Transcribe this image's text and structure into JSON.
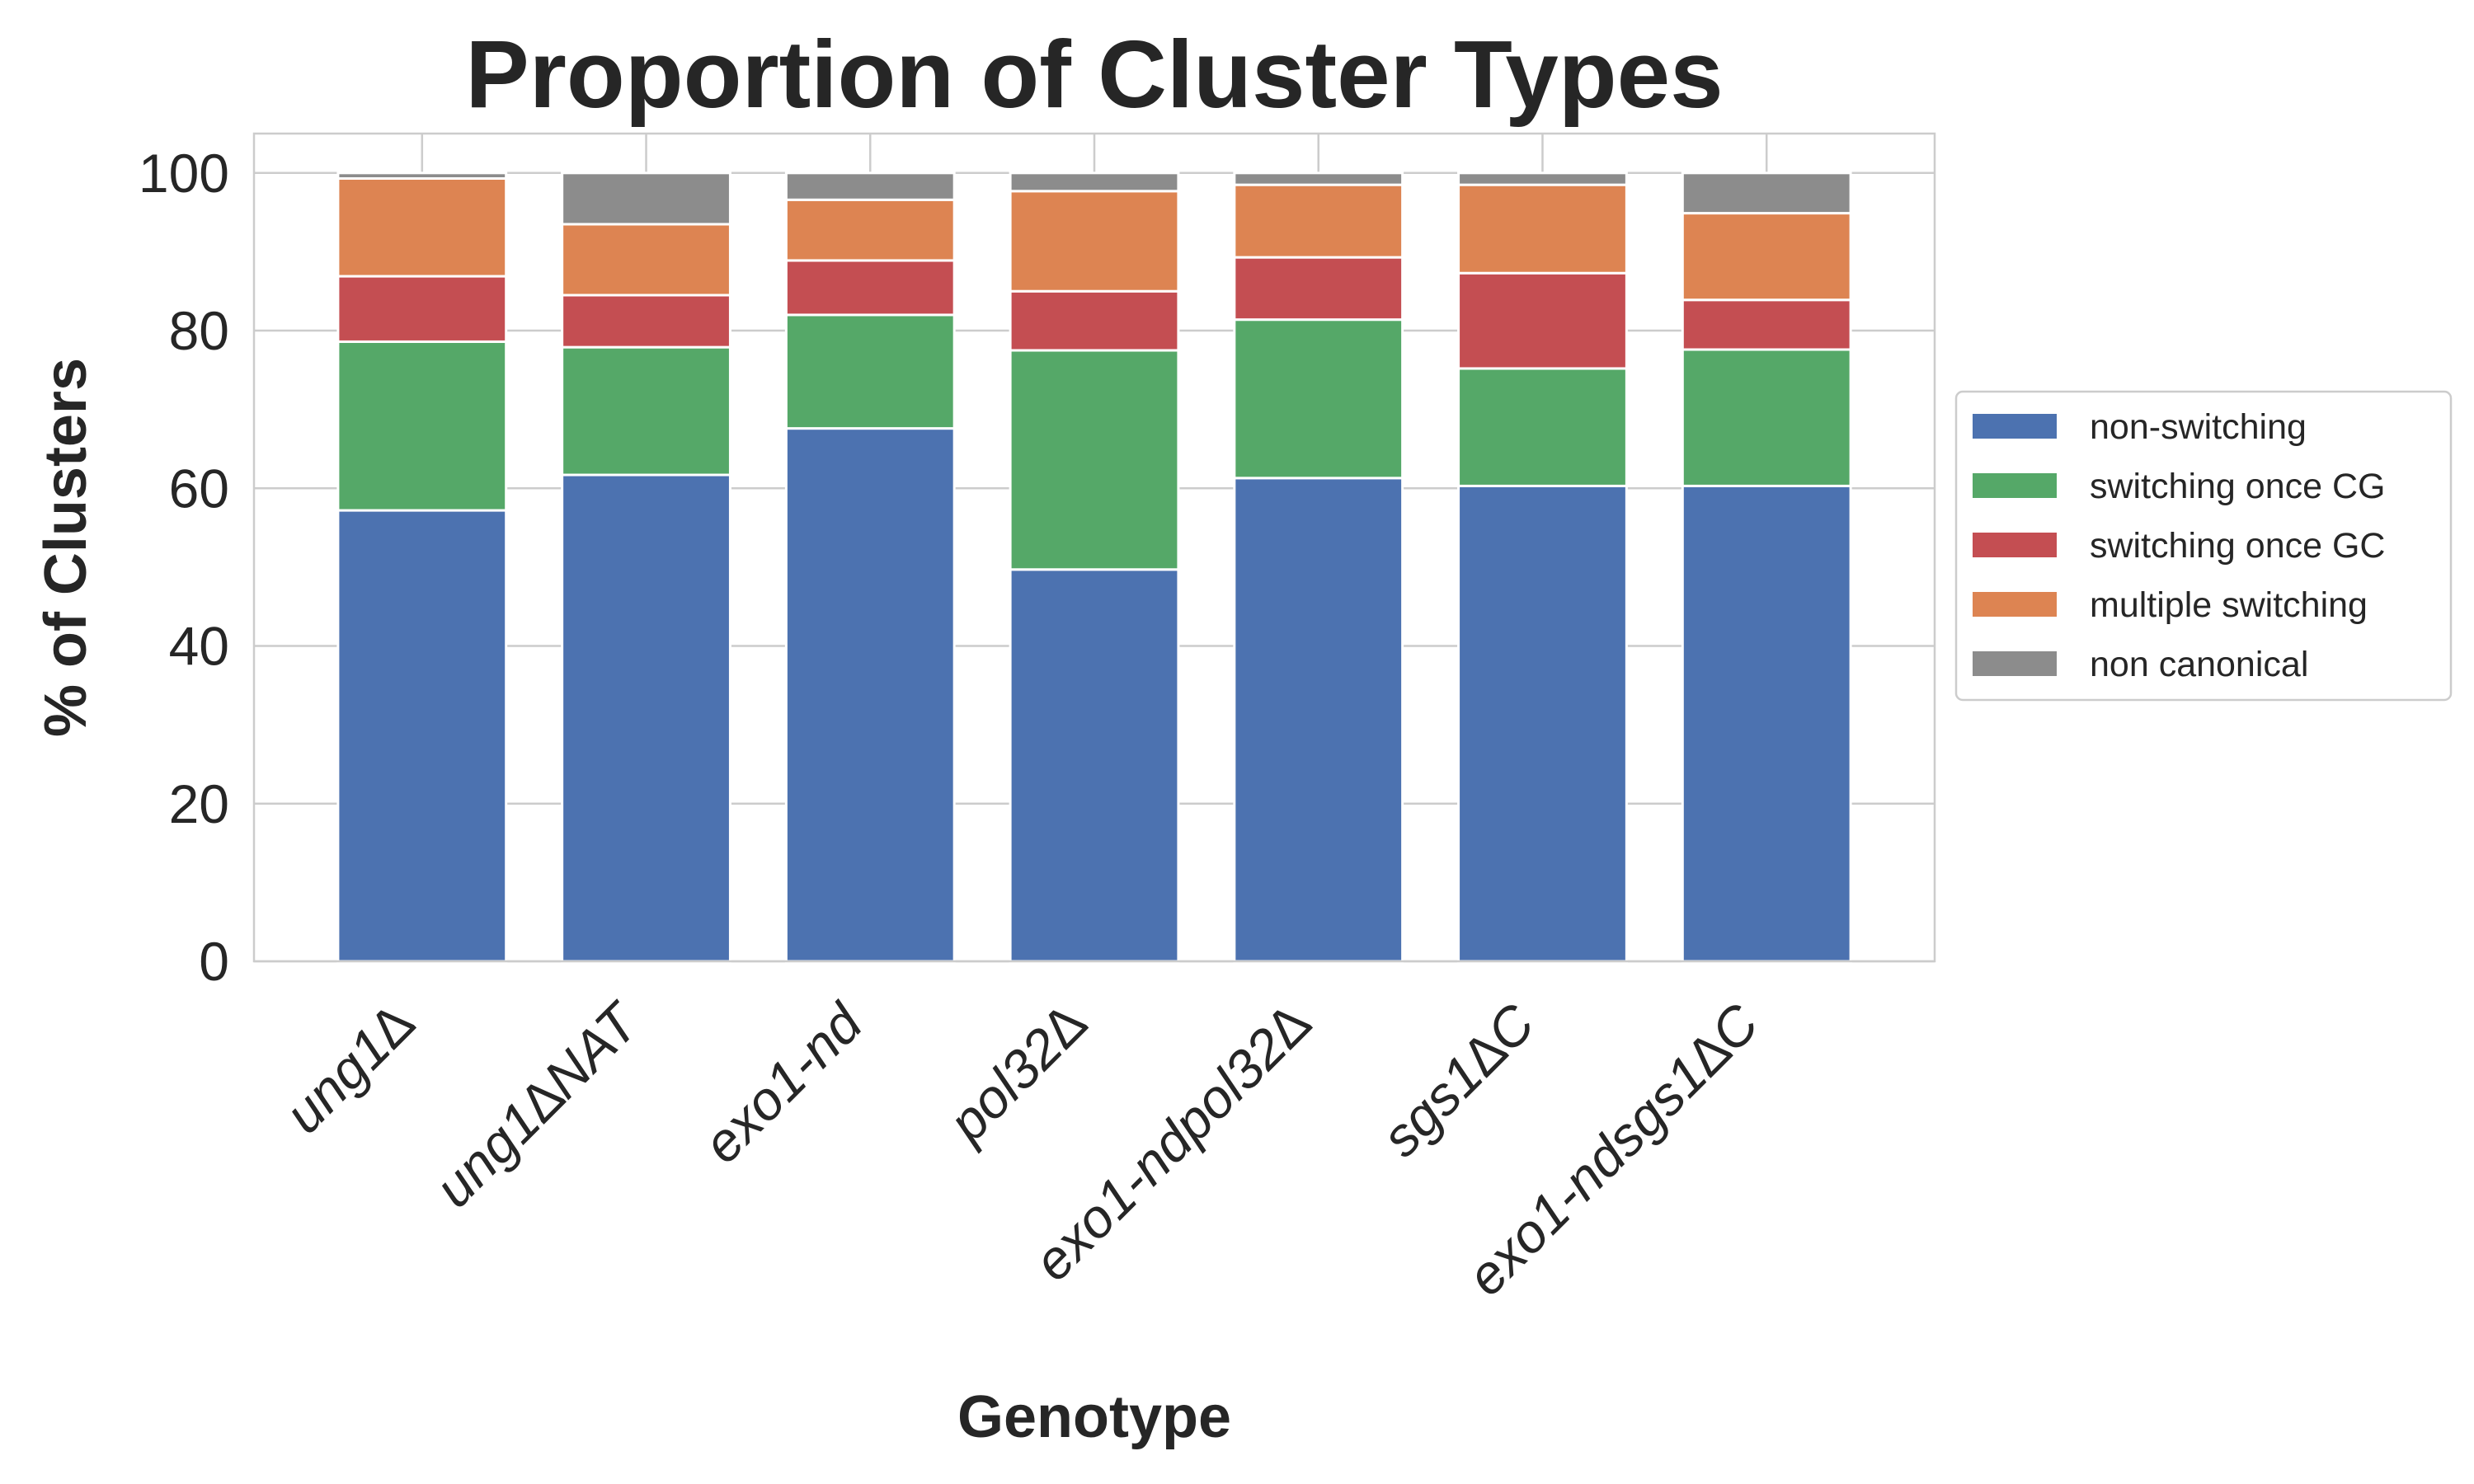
{
  "chart_data": {
    "type": "bar",
    "stacked": true,
    "title": "Proportion of Cluster Types",
    "xlabel": "Genotype",
    "ylabel": "% of Clusters",
    "ylim": [
      0,
      105
    ],
    "yticks": [
      0,
      20,
      40,
      60,
      80,
      100
    ],
    "grid": true,
    "legend_position": "right",
    "categories": [
      "ung1∆",
      "ung1∆NAT",
      "exo1-nd",
      "pol32∆",
      "exo1-ndpol32∆",
      "sgs1∆C",
      "exo1-ndsgs1∆C"
    ],
    "series": [
      {
        "name": "non-switching",
        "color": "#4c72b0",
        "values": [
          57.2,
          61.7,
          67.6,
          49.7,
          61.3,
          60.3,
          60.3
        ]
      },
      {
        "name": "switching once CG",
        "color": "#55a868",
        "values": [
          21.4,
          16.2,
          14.4,
          27.8,
          20.1,
          14.9,
          17.3
        ]
      },
      {
        "name": "switching once GC",
        "color": "#c44e52",
        "values": [
          8.3,
          6.6,
          6.9,
          7.5,
          7.9,
          12.1,
          6.3
        ]
      },
      {
        "name": "multiple switching",
        "color": "#dd8452",
        "values": [
          12.4,
          9.0,
          7.7,
          12.7,
          9.2,
          11.2,
          11.0
        ]
      },
      {
        "name": "non canonical",
        "color": "#8c8c8c",
        "values": [
          0.7,
          6.5,
          3.4,
          2.3,
          1.5,
          1.5,
          5.1
        ]
      }
    ]
  }
}
